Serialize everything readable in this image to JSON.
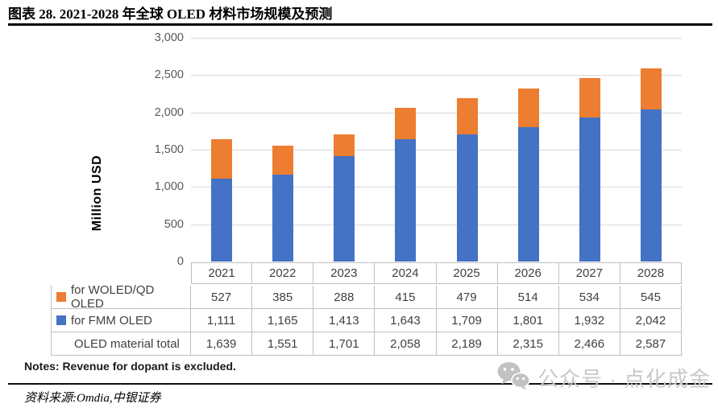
{
  "title": "图表 28. 2021-2028 年全球 OLED 材料市场规模及预测",
  "notes": "Notes: Revenue for dopant is excluded.",
  "source": "资料来源:Omdia,中银证券",
  "watermark": {
    "icon": "wechat-icon",
    "text": "公众号 · 点化成金"
  },
  "colors": {
    "bar_fmm_blue": "#4472C4",
    "bar_woled_orange": "#ED7D31",
    "gridline": "#d9d9d9",
    "table_border": "#bfbfbf",
    "tick_text": "#595959",
    "cell_text": "#404040",
    "watermark": "#c9c9c9"
  },
  "chart_data": {
    "type": "bar",
    "stacked": true,
    "title": "",
    "xlabel": "",
    "ylabel": "Million USD",
    "ylim": [
      0,
      3000
    ],
    "yticks": [
      "0",
      "500",
      "1,000",
      "1,500",
      "2,000",
      "2,500",
      "3,000"
    ],
    "grid": true,
    "legend_position": "table-below",
    "categories": [
      "2021",
      "2022",
      "2023",
      "2024",
      "2025",
      "2026",
      "2027",
      "2028"
    ],
    "series": [
      {
        "name": "for WOLED/QD OLED",
        "color": "#ED7D31",
        "values": [
          527,
          385,
          288,
          415,
          479,
          514,
          534,
          545
        ]
      },
      {
        "name": "for FMM OLED",
        "color": "#4472C4",
        "values": [
          1111,
          1165,
          1413,
          1643,
          1709,
          1801,
          1932,
          2042
        ]
      }
    ],
    "totals": {
      "name": "OLED material total",
      "values": [
        1639,
        1551,
        1701,
        2058,
        2189,
        2315,
        2466,
        2587
      ]
    }
  },
  "table": {
    "header": [
      "2021",
      "2022",
      "2023",
      "2024",
      "2025",
      "2026",
      "2027",
      "2028"
    ],
    "rows": [
      {
        "label": "for WOLED/QD OLED",
        "swatch": "#ED7D31",
        "values": [
          "527",
          "385",
          "288",
          "415",
          "479",
          "514",
          "534",
          "545"
        ]
      },
      {
        "label": "for FMM OLED",
        "swatch": "#4472C4",
        "values": [
          "1,111",
          "1,165",
          "1,413",
          "1,643",
          "1,709",
          "1,801",
          "1,932",
          "2,042"
        ]
      },
      {
        "label": "OLED material total",
        "swatch": null,
        "values": [
          "1,639",
          "1,551",
          "1,701",
          "2,058",
          "2,189",
          "2,315",
          "2,466",
          "2,587"
        ]
      }
    ]
  }
}
